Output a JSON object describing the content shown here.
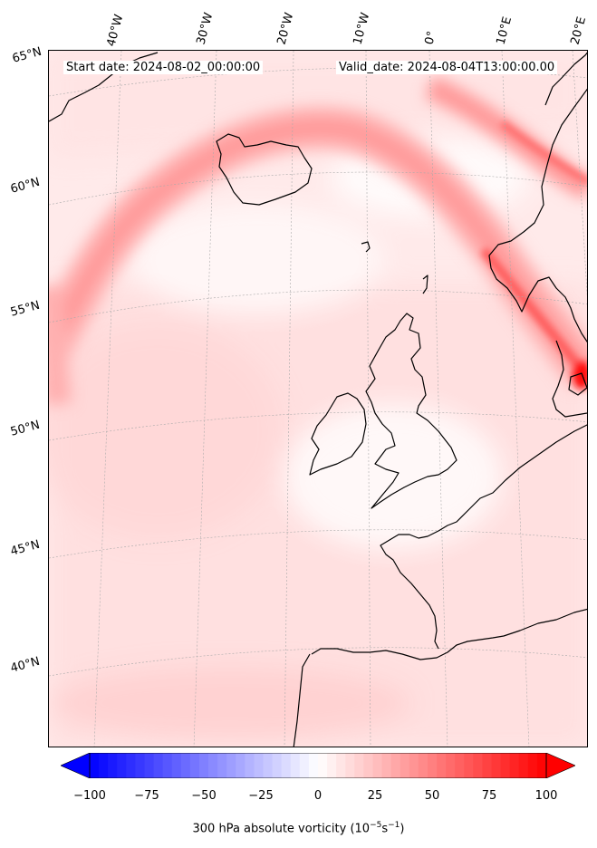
{
  "header": {
    "start_date": "Start date: 2024-08-02_00:00:00",
    "valid_date": "Valid_date: 2024-08-04T13:00:00.00"
  },
  "longitude_labels": [
    "40°W",
    "30°W",
    "20°W",
    "10°W",
    "0°",
    "10°E",
    "20°E"
  ],
  "latitude_labels": [
    "65°N",
    "60°N",
    "55°N",
    "50°N",
    "45°N",
    "40°N"
  ],
  "colorbar": {
    "ticks": [
      "−100",
      "−75",
      "−50",
      "−25",
      "0",
      "25",
      "50",
      "75",
      "100"
    ],
    "label": "300 hPa absolute vorticity (10",
    "label_exp1": "−5",
    "label_mid": "s",
    "label_exp2": "−1",
    "label_end": ")",
    "min": -100,
    "max": 100,
    "levels": 51,
    "colormap": "bwr",
    "extend": "both"
  },
  "colors": {
    "positive_max": "#ff0000",
    "negative_max": "#0000ff",
    "neutral": "#ffffff",
    "coastline": "#000000",
    "gridline": "#999999"
  }
}
